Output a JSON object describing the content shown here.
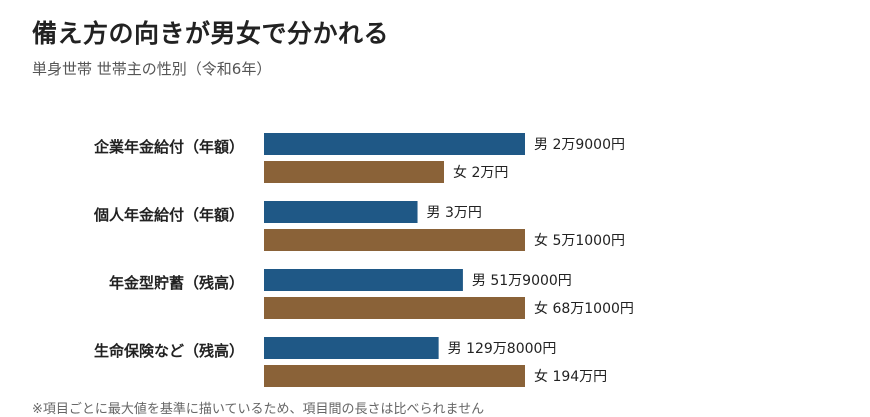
{
  "title": "備え方の向きが男女で分かれる",
  "subtitle": "単身世帯 世帯主の性別（令和6年）",
  "colors": {
    "male": "#1f5886",
    "female": "#8a6238"
  },
  "chart_data": {
    "type": "bar",
    "orientation": "horizontal",
    "categories": [
      "企業年金給付（年額）",
      "個人年金給付（年額）",
      "年金型貯蓄（残高）",
      "生命保険など（残高）"
    ],
    "series": [
      {
        "name": "男",
        "values": [
          2.9,
          3,
          51.9,
          129.8
        ],
        "labels": [
          "男 2万9000円",
          "男 3万円",
          "男 51万9000円",
          "男 129万8000円"
        ]
      },
      {
        "name": "女",
        "values": [
          2,
          5.1,
          68.1,
          194
        ],
        "labels": [
          "女 2万円",
          "女 5万1000円",
          "女 68万1000円",
          "女 194万円"
        ]
      }
    ],
    "unit": "万円",
    "scale": "each category scaled to its own maximum",
    "grid": false,
    "legend": "none"
  },
  "note": "※項目ごとに最大値を基準に描いているため、項目間の長さは比べられません"
}
